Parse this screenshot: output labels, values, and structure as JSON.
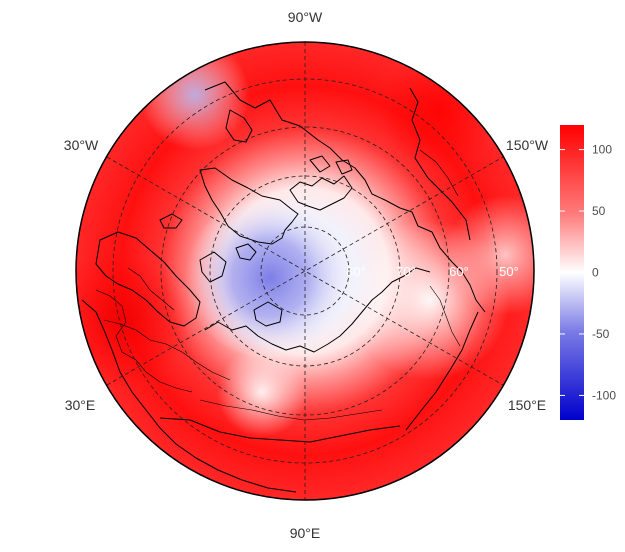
{
  "map": {
    "projection": "north polar orthographic",
    "longitude_labels": {
      "top": "90°W",
      "upper_left": "30°W",
      "upper_right": "150°W",
      "lower_left": "30°E",
      "lower_right": "150°E",
      "bottom": "90°E"
    },
    "latitude_labels": [
      "80°",
      "70°",
      "60°",
      "50°"
    ]
  },
  "colorbar": {
    "ticks": [
      "100",
      "50",
      "0",
      "-50",
      "-100"
    ],
    "tick_values": [
      100,
      50,
      0,
      -50,
      -100
    ],
    "range": [
      -120,
      120
    ],
    "colors": {
      "low": "#0000cc",
      "mid": "#ffffff",
      "high": "#ff0000"
    }
  },
  "colors": {
    "field_positive": "#ff0000",
    "field_negative": "#3b3bdd",
    "coastline": "#000000",
    "graticule": "#222222"
  }
}
